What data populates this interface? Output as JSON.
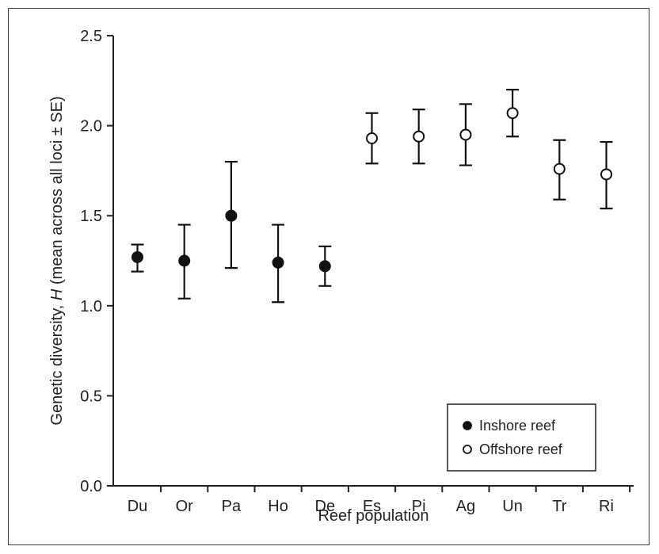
{
  "chart_data": {
    "type": "scatter",
    "xlabel": "Reef population",
    "ylabel": {
      "prefix": "Genetic diversity, ",
      "italic": "H",
      "suffix": " (mean across all loci ± SE)"
    },
    "categories": [
      "Du",
      "Or",
      "Pa",
      "Ho",
      "De",
      "Es",
      "Pi",
      "Ag",
      "Un",
      "Tr",
      "Ri"
    ],
    "ylim": [
      0.0,
      2.5
    ],
    "yticks": [
      "0.0",
      "0.5",
      "1.0",
      "1.5",
      "2.0",
      "2.5"
    ],
    "grid": false,
    "legend_position": "bottom-right",
    "series": [
      {
        "name": "Inshore reef",
        "marker": "filled-circle",
        "points": [
          {
            "x": "Du",
            "y": 1.27,
            "lower": 1.19,
            "upper": 1.34
          },
          {
            "x": "Or",
            "y": 1.25,
            "lower": 1.04,
            "upper": 1.45
          },
          {
            "x": "Pa",
            "y": 1.5,
            "lower": 1.21,
            "upper": 1.8
          },
          {
            "x": "Ho",
            "y": 1.24,
            "lower": 1.02,
            "upper": 1.45
          },
          {
            "x": "De",
            "y": 1.22,
            "lower": 1.11,
            "upper": 1.33
          }
        ]
      },
      {
        "name": "Offshore reef",
        "marker": "open-circle",
        "points": [
          {
            "x": "Es",
            "y": 1.93,
            "lower": 1.79,
            "upper": 2.07
          },
          {
            "x": "Pi",
            "y": 1.94,
            "lower": 1.79,
            "upper": 2.09
          },
          {
            "x": "Ag",
            "y": 1.95,
            "lower": 1.78,
            "upper": 2.12
          },
          {
            "x": "Un",
            "y": 2.07,
            "lower": 1.94,
            "upper": 2.2
          },
          {
            "x": "Tr",
            "y": 1.76,
            "lower": 1.59,
            "upper": 1.92
          },
          {
            "x": "Ri",
            "y": 1.73,
            "lower": 1.54,
            "upper": 1.91
          }
        ]
      }
    ]
  }
}
